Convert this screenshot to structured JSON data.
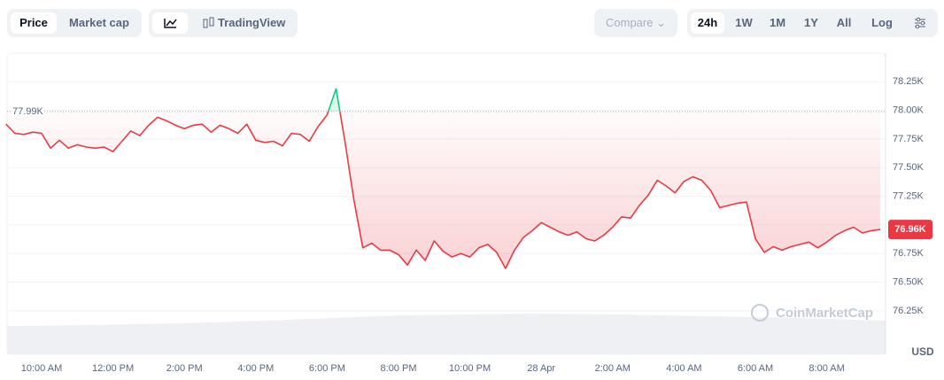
{
  "toolbar": {
    "view_tabs": [
      "Price",
      "Market cap"
    ],
    "chart_tool": "TradingView",
    "compare": "Compare",
    "ranges": [
      "24h",
      "1W",
      "1M",
      "1Y",
      "All"
    ],
    "log": "Log"
  },
  "chart_data": {
    "type": "line",
    "categories": [
      null,
      null,
      null,
      null,
      "10:00 AM",
      null,
      null,
      null,
      null,
      null,
      null,
      null,
      "12:00 PM",
      null,
      null,
      null,
      null,
      null,
      null,
      null,
      "2:00 PM",
      null,
      null,
      null,
      null,
      null,
      null,
      null,
      "4:00 PM",
      null,
      null,
      null,
      null,
      null,
      null,
      null,
      "6:00 PM",
      null,
      null,
      null,
      null,
      null,
      null,
      null,
      "8:00 PM",
      null,
      null,
      null,
      null,
      null,
      null,
      null,
      "10:00 PM",
      null,
      null,
      null,
      null,
      null,
      null,
      null,
      "28 Apr",
      null,
      null,
      null,
      null,
      null,
      null,
      null,
      "2:00 AM",
      null,
      null,
      null,
      null,
      null,
      null,
      null,
      "4:00 AM",
      null,
      null,
      null,
      null,
      null,
      null,
      null,
      "6:00 AM",
      null,
      null,
      null,
      null,
      null,
      null,
      null,
      "8:00 AM",
      null,
      null,
      null,
      null,
      null,
      null
    ],
    "values": [
      77880,
      77800,
      77790,
      77810,
      77800,
      77670,
      77740,
      77670,
      77700,
      77680,
      77670,
      77680,
      77640,
      77730,
      77820,
      77780,
      77870,
      77940,
      77910,
      77870,
      77840,
      77870,
      77880,
      77810,
      77870,
      77840,
      77800,
      77880,
      77740,
      77720,
      77730,
      77690,
      77800,
      77790,
      77730,
      77860,
      77960,
      78190,
      77730,
      77220,
      76800,
      76840,
      76780,
      76780,
      76740,
      76650,
      76780,
      76690,
      76860,
      76770,
      76720,
      76750,
      76720,
      76800,
      76830,
      76760,
      76620,
      76780,
      76890,
      76950,
      77020,
      76980,
      76940,
      76910,
      76940,
      76880,
      76860,
      76910,
      76980,
      77070,
      77060,
      77170,
      77260,
      77390,
      77340,
      77280,
      77380,
      77420,
      77390,
      77300,
      77150,
      77170,
      77190,
      77200,
      76880,
      76760,
      76810,
      76780,
      76810,
      76830,
      76850,
      76800,
      76850,
      76910,
      76950,
      76980,
      76930,
      76950,
      76960
    ],
    "color": "#ea3943",
    "color_above": "#16c784",
    "ylim": [
      75870,
      78500
    ],
    "yticks": [
      {
        "value": 76250,
        "label": "76.25K"
      },
      {
        "value": 76500,
        "label": "76.50K"
      },
      {
        "value": 76750,
        "label": "76.75K"
      },
      {
        "value": 77000,
        "label": "77.00K"
      },
      {
        "value": 77250,
        "label": "77.25K"
      },
      {
        "value": 77500,
        "label": "77.50K"
      },
      {
        "value": 77750,
        "label": "77.75K"
      },
      {
        "value": 78000,
        "label": "78.00K"
      },
      {
        "value": 78250,
        "label": "78.25K"
      }
    ],
    "y_unit": "USD",
    "grid": true,
    "reference": {
      "value": 77990,
      "label": "77.99K"
    },
    "current": {
      "value": 76960,
      "label": "76.96K"
    },
    "watermark": "CoinMarketCap"
  }
}
